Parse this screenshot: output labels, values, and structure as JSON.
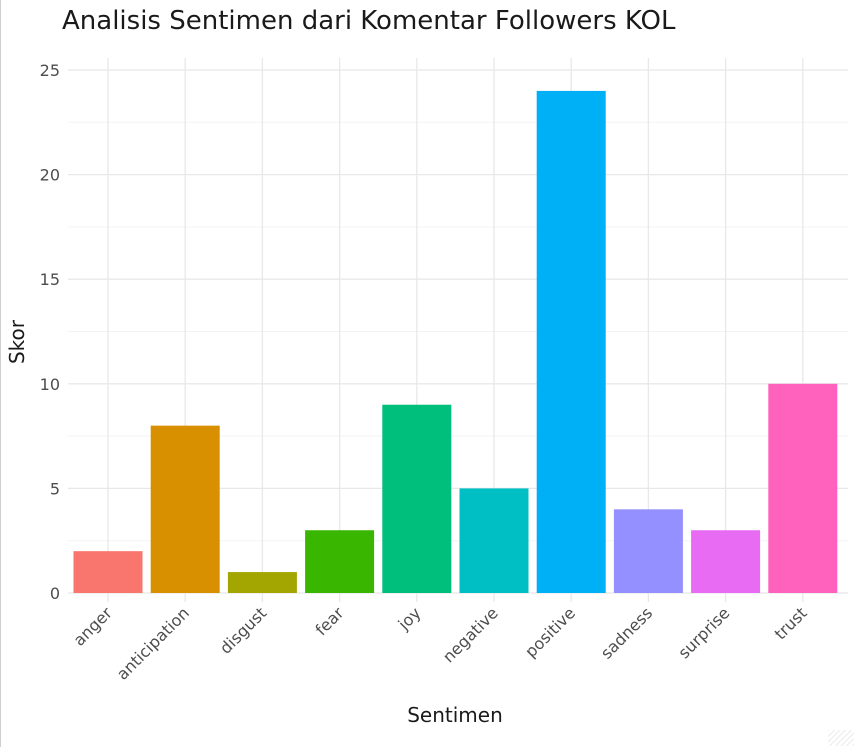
{
  "chart_data": {
    "type": "bar",
    "title": "Analisis Sentimen dari Komentar Followers KOL",
    "xlabel": "Sentimen",
    "ylabel": "Skor",
    "categories": [
      "anger",
      "anticipation",
      "disgust",
      "fear",
      "joy",
      "negative",
      "positive",
      "sadness",
      "surprise",
      "trust"
    ],
    "values": [
      2,
      8,
      1,
      3,
      9,
      5,
      24,
      4,
      3,
      10
    ],
    "colors": [
      "#F8766D",
      "#D89000",
      "#A3A500",
      "#39B600",
      "#00BF7D",
      "#00BFC4",
      "#00B0F6",
      "#9590FF",
      "#E76BF3",
      "#FF62BC"
    ],
    "ylim": [
      0,
      25
    ],
    "yticks": [
      0,
      5,
      10,
      15,
      20,
      25
    ],
    "grid": true,
    "legend": "none"
  }
}
